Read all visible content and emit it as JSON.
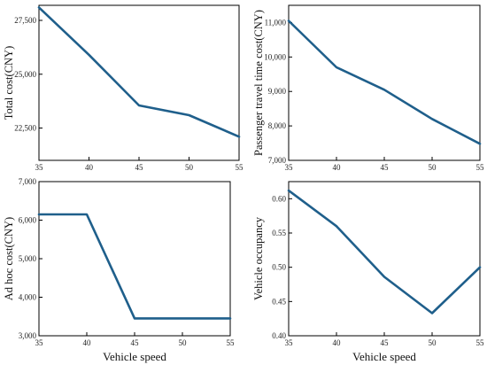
{
  "chart_data": [
    {
      "type": "line",
      "x": [
        35,
        40,
        45,
        50,
        55
      ],
      "values": [
        28100,
        25900,
        23550,
        23100,
        22100
      ],
      "xlabel": "",
      "ylabel": "Total cost(CNY)",
      "xlim": [
        35,
        55
      ],
      "ylim": [
        21000,
        28200
      ],
      "xticks": [
        35,
        40,
        45,
        50,
        55
      ],
      "yticks": [
        22500,
        25000,
        27500
      ],
      "ytick_labels": [
        "22,500",
        "25,000",
        "27,500"
      ],
      "grid": false,
      "color": "#1f5f8b"
    },
    {
      "type": "line",
      "x": [
        35,
        40,
        45,
        50,
        55
      ],
      "values": [
        11050,
        9700,
        9050,
        8200,
        7480
      ],
      "xlabel": "",
      "ylabel": "Passenger travel time cost(CNY)",
      "xlim": [
        35,
        55
      ],
      "ylim": [
        7000,
        11500
      ],
      "xticks": [
        35,
        40,
        45,
        50,
        55
      ],
      "yticks": [
        7000,
        8000,
        9000,
        10000,
        11000
      ],
      "ytick_labels": [
        "7,000",
        "8,000",
        "9,000",
        "10,000",
        "11,000"
      ],
      "grid": false,
      "color": "#1f5f8b"
    },
    {
      "type": "line",
      "x": [
        35,
        40,
        45,
        50,
        55
      ],
      "values": [
        6150,
        6150,
        3450,
        3450,
        3450
      ],
      "xlabel": "Vehicle speed",
      "ylabel": "Ad hoc cost(CNY)",
      "xlim": [
        35,
        55
      ],
      "ylim": [
        3000,
        7000
      ],
      "xticks": [
        35,
        40,
        45,
        50,
        55
      ],
      "yticks": [
        3000,
        4000,
        5000,
        6000,
        7000
      ],
      "ytick_labels": [
        "3,000",
        "4,000",
        "5,000",
        "6,000",
        "7,000"
      ],
      "grid": false,
      "color": "#1f5f8b"
    },
    {
      "type": "line",
      "x": [
        35,
        40,
        45,
        50,
        55
      ],
      "values": [
        0.612,
        0.56,
        0.486,
        0.433,
        0.5
      ],
      "xlabel": "Vehicle speed",
      "ylabel": "Vehicle occupancy",
      "xlim": [
        35,
        55
      ],
      "ylim": [
        0.4,
        0.625
      ],
      "xticks": [
        35,
        40,
        45,
        50,
        55
      ],
      "yticks": [
        0.4,
        0.45,
        0.5,
        0.55,
        0.6
      ],
      "ytick_labels": [
        "0.40",
        "0.45",
        "0.50",
        "0.55",
        "0.60"
      ],
      "grid": false,
      "color": "#1f5f8b"
    }
  ]
}
